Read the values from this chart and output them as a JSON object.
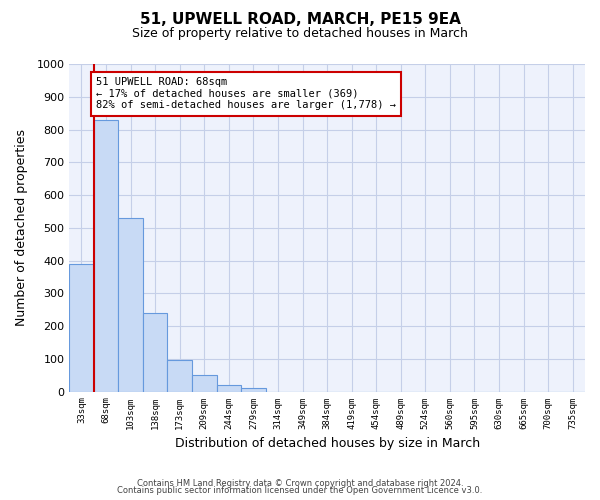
{
  "title": "51, UPWELL ROAD, MARCH, PE15 9EA",
  "subtitle": "Size of property relative to detached houses in March",
  "xlabel": "Distribution of detached houses by size in March",
  "ylabel": "Number of detached properties",
  "bin_labels": [
    "33sqm",
    "68sqm",
    "103sqm",
    "138sqm",
    "173sqm",
    "209sqm",
    "244sqm",
    "279sqm",
    "314sqm",
    "349sqm",
    "384sqm",
    "419sqm",
    "454sqm",
    "489sqm",
    "524sqm",
    "560sqm",
    "595sqm",
    "630sqm",
    "665sqm",
    "700sqm",
    "735sqm"
  ],
  "bar_values": [
    390,
    830,
    530,
    240,
    95,
    50,
    20,
    10,
    0,
    0,
    0,
    0,
    0,
    0,
    0,
    0,
    0,
    0,
    0,
    0,
    0
  ],
  "bar_color": "#c8daf5",
  "bar_edge_color": "#6699dd",
  "vline_color": "#cc0000",
  "annotation_title": "51 UPWELL ROAD: 68sqm",
  "annotation_line1": "← 17% of detached houses are smaller (369)",
  "annotation_line2": "82% of semi-detached houses are larger (1,778) →",
  "annotation_box_edgecolor": "#cc0000",
  "ylim": [
    0,
    1000
  ],
  "yticks": [
    0,
    100,
    200,
    300,
    400,
    500,
    600,
    700,
    800,
    900,
    1000
  ],
  "footer1": "Contains HM Land Registry data © Crown copyright and database right 2024.",
  "footer2": "Contains public sector information licensed under the Open Government Licence v3.0.",
  "bg_color": "#eef2fc",
  "grid_color": "#c5cfe8",
  "fig_width": 6.0,
  "fig_height": 5.0
}
